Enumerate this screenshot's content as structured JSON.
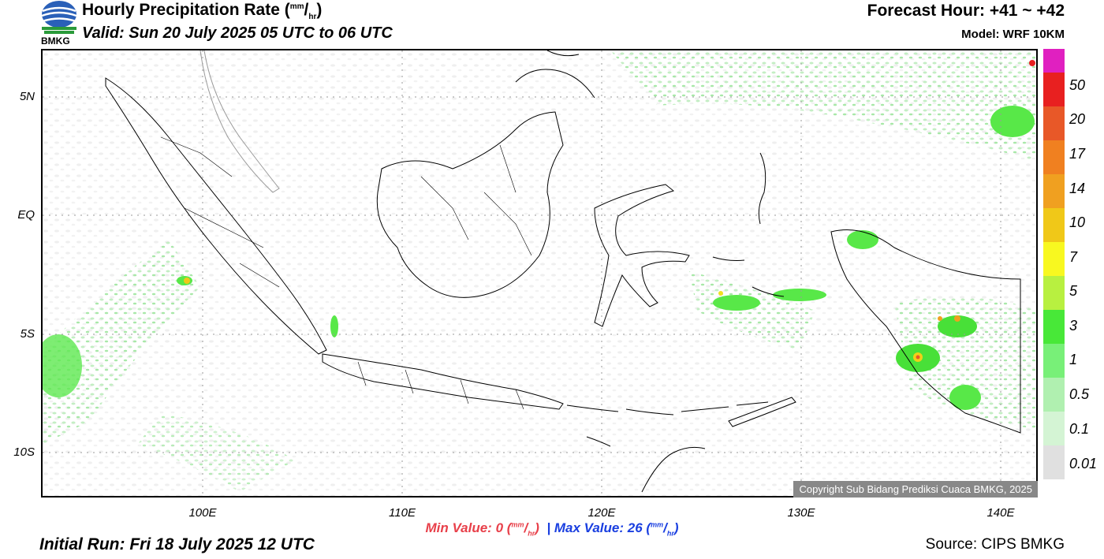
{
  "header": {
    "title": "Hourly Precipitation Rate (",
    "unit_num": "mm",
    "unit_den": "hr",
    "title_close": ")",
    "valid": "Valid: Sun 20 July 2025 05 UTC to 06 UTC",
    "forecast_hour": "Forecast Hour: +41 ~ +42",
    "model": "Model: WRF 10KM",
    "logo_text": "BMKG"
  },
  "map": {
    "lat_labels": [
      "5N",
      "EQ",
      "5S",
      "10S"
    ],
    "lon_labels": [
      "100E",
      "110E",
      "120E",
      "130E",
      "140E"
    ],
    "copyright": "Copyright Sub Bidang Prediksi Cuaca BMKG, 2025"
  },
  "legend": {
    "colors": [
      "#e020c0",
      "#e82020",
      "#e85828",
      "#f08020",
      "#f0a020",
      "#f0c818",
      "#f0e020",
      "#f8f820",
      "#b8f040",
      "#58f028",
      "#48e838",
      "#78f078",
      "#b0f0b0",
      "#d8f4d8",
      "#e0e0e0"
    ],
    "labels": [
      "50",
      "20",
      "17",
      "14",
      "10",
      "7",
      "5",
      "3",
      "1",
      "0.5",
      "0.1",
      "0.01"
    ]
  },
  "footer": {
    "min_label": "Min Value:",
    "min_value": "0",
    "separator": "|",
    "max_label": "Max Value:",
    "max_value": "26",
    "unit_num": "mm",
    "unit_den": "hr",
    "initial_run": "Initial Run: Fri 18 July 2025 12 UTC",
    "source": "Source: CIPS BMKG"
  }
}
